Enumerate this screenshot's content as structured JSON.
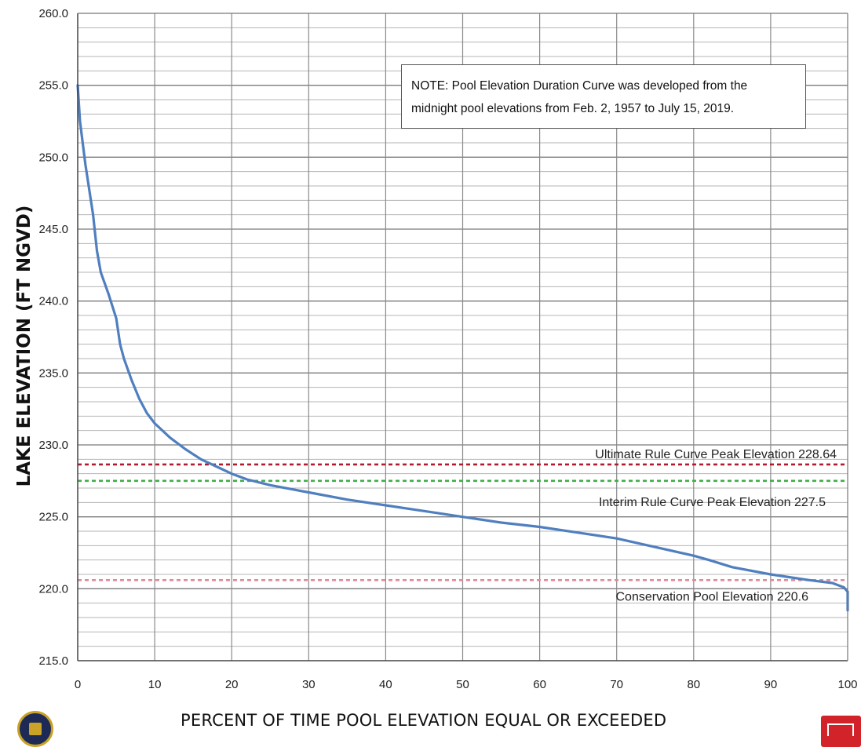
{
  "chart_data": {
    "type": "line",
    "title": "",
    "xlabel": "PERCENT OF TIME POOL ELEVATION EQUAL OR EXCEEDED",
    "ylabel": "LAKE ELEVATION (FT NGVD)",
    "xlim": [
      0,
      100
    ],
    "ylim": [
      215,
      260
    ],
    "x_ticks": [
      "0",
      "10",
      "20",
      "30",
      "40",
      "50",
      "60",
      "70",
      "80",
      "90",
      "100"
    ],
    "y_ticks": [
      "260.0",
      "255.0",
      "250.0",
      "245.0",
      "240.0",
      "235.0",
      "230.0",
      "225.0",
      "220.0",
      "215.0"
    ],
    "grid": true,
    "series": [
      {
        "color": "#4f7fbf",
        "x": [
          0,
          0.3,
          1,
          2,
          2.5,
          3,
          4,
          5,
          5.5,
          6,
          7,
          8,
          9,
          10,
          12,
          14,
          16,
          18,
          20,
          22,
          25,
          30,
          35,
          40,
          45,
          50,
          55,
          60,
          65,
          70,
          75,
          80,
          82,
          85,
          90,
          95,
          98,
          99.5,
          100,
          100
        ],
        "y": [
          255.0,
          252.5,
          249.5,
          246.0,
          243.5,
          242.0,
          240.5,
          238.8,
          237.0,
          236.0,
          234.5,
          233.2,
          232.2,
          231.5,
          230.5,
          229.7,
          229.0,
          228.5,
          228.0,
          227.6,
          227.2,
          226.7,
          226.2,
          225.8,
          225.4,
          225.0,
          224.6,
          224.3,
          223.9,
          223.5,
          222.9,
          222.3,
          222.0,
          221.5,
          221.0,
          220.6,
          220.4,
          220.1,
          219.8,
          218.5
        ]
      }
    ],
    "reference_lines": [
      {
        "label": "Ultimate Rule Curve Peak Elevation 228.64",
        "value": 228.64,
        "color": "#b01c2e"
      },
      {
        "label": "Interim Rule Curve Peak Elevation 227.5",
        "value": 227.5,
        "color": "#3fae49"
      },
      {
        "label": "Conservation Pool Elevation  220.6",
        "value": 220.6,
        "color": "#e08a9a"
      }
    ],
    "note": {
      "line1": "NOTE:   Pool Elevation Duration Curve was developed from the",
      "line2": "midnight pool elevations from Feb. 2, 1957 to July 15, 2019."
    }
  }
}
